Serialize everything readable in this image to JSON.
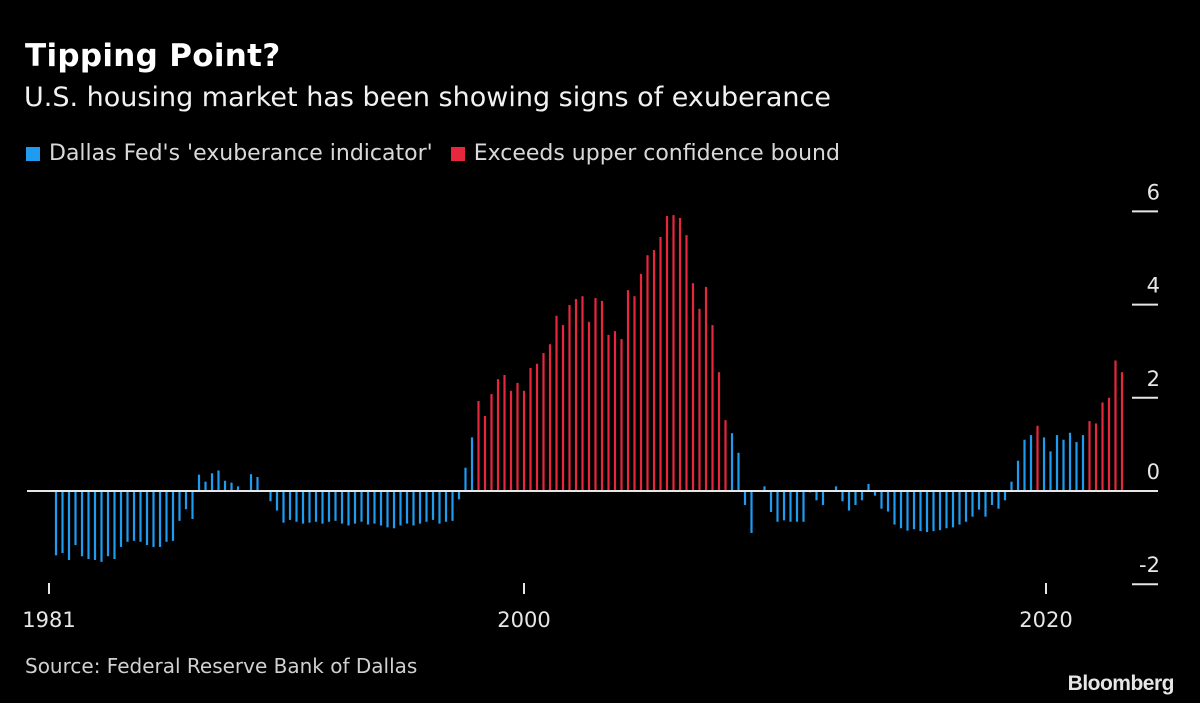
{
  "header": {
    "title": "Tipping Point?",
    "subtitle": "U.S. housing market has been showing signs of exuberance"
  },
  "legend": [
    {
      "label": "Dallas Fed's 'exuberance indicator'",
      "color": "#1f9bf0"
    },
    {
      "label": "Exceeds upper confidence bound",
      "color": "#e8273c"
    }
  ],
  "footer": {
    "source": "Source: Federal Reserve Bank of Dallas",
    "brand": "Bloomberg"
  },
  "chart_data": {
    "type": "bar",
    "title": "Tipping Point?",
    "subtitle": "U.S. housing market has been showing signs of exuberance",
    "xlabel": "",
    "ylabel": "",
    "frequency": "quarterly",
    "x_start": 1981,
    "x_ticks": [
      1981,
      2000,
      2020
    ],
    "y_ticks": [
      -2,
      0,
      2,
      4,
      6
    ],
    "ylim": [
      -2.2,
      6.2
    ],
    "y_axis_side": "right",
    "grid": false,
    "legend_position": "top-left",
    "series": [
      {
        "name": "Dallas Fed's 'exuberance indicator'",
        "color": "#1f9bf0"
      },
      {
        "name": "Exceeds upper confidence bound",
        "color": "#e8273c"
      }
    ],
    "values": [
      -1.38,
      -1.33,
      -1.48,
      -1.16,
      -1.4,
      -1.46,
      -1.48,
      -1.52,
      -1.4,
      -1.46,
      -1.2,
      -1.09,
      -1.07,
      -1.09,
      -1.16,
      -1.2,
      -1.2,
      -1.09,
      -1.07,
      -0.64,
      -0.39,
      -0.6,
      0.35,
      0.2,
      0.38,
      0.44,
      0.22,
      0.18,
      0.1,
      0.0,
      0.36,
      0.3,
      0.0,
      -0.22,
      -0.42,
      -0.68,
      -0.62,
      -0.66,
      -0.7,
      -0.68,
      -0.66,
      -0.7,
      -0.66,
      -0.64,
      -0.7,
      -0.74,
      -0.7,
      -0.66,
      -0.72,
      -0.7,
      -0.74,
      -0.78,
      -0.8,
      -0.74,
      -0.7,
      -0.74,
      -0.7,
      -0.66,
      -0.62,
      -0.7,
      -0.66,
      -0.64,
      -0.18,
      0.5,
      1.15,
      1.93,
      1.61,
      2.08,
      2.4,
      2.49,
      2.15,
      2.32,
      2.15,
      2.64,
      2.73,
      2.96,
      3.15,
      3.76,
      3.56,
      3.99,
      4.12,
      4.18,
      3.63,
      4.14,
      4.08,
      3.35,
      3.43,
      3.26,
      4.31,
      4.18,
      4.66,
      5.06,
      5.17,
      5.45,
      5.9,
      5.92,
      5.86,
      5.49,
      4.46,
      3.91,
      4.38,
      3.56,
      2.55,
      1.52,
      1.24,
      0.82,
      -0.3,
      -0.9,
      0.0,
      0.1,
      -0.45,
      -0.66,
      -0.63,
      -0.66,
      -0.66,
      -0.66,
      -0.03,
      -0.2,
      -0.3,
      0.0,
      0.1,
      -0.22,
      -0.42,
      -0.3,
      -0.2,
      0.15,
      -0.1,
      -0.38,
      -0.44,
      -0.72,
      -0.8,
      -0.85,
      -0.82,
      -0.86,
      -0.88,
      -0.86,
      -0.84,
      -0.8,
      -0.78,
      -0.72,
      -0.66,
      -0.55,
      -0.4,
      -0.55,
      -0.3,
      -0.38,
      -0.2,
      0.2,
      0.65,
      1.1,
      1.2,
      1.4,
      1.15,
      0.85,
      1.2,
      1.1,
      1.25,
      1.05,
      1.2,
      1.5,
      1.45,
      1.9,
      2.0,
      2.8,
      2.55
    ],
    "exceeds_upper_bound": [
      false,
      false,
      false,
      false,
      false,
      false,
      false,
      false,
      false,
      false,
      false,
      false,
      false,
      false,
      false,
      false,
      false,
      false,
      false,
      false,
      false,
      false,
      false,
      false,
      false,
      false,
      false,
      false,
      false,
      false,
      false,
      false,
      false,
      false,
      false,
      false,
      false,
      false,
      false,
      false,
      false,
      false,
      false,
      false,
      false,
      false,
      false,
      false,
      false,
      false,
      false,
      false,
      false,
      false,
      false,
      false,
      false,
      false,
      false,
      false,
      false,
      false,
      false,
      false,
      false,
      true,
      true,
      true,
      true,
      true,
      true,
      true,
      true,
      true,
      true,
      true,
      true,
      true,
      true,
      true,
      true,
      true,
      true,
      true,
      true,
      true,
      true,
      true,
      true,
      true,
      true,
      true,
      true,
      true,
      true,
      true,
      true,
      true,
      true,
      true,
      true,
      true,
      true,
      true,
      false,
      false,
      false,
      false,
      false,
      false,
      false,
      false,
      false,
      false,
      false,
      false,
      false,
      false,
      false,
      false,
      false,
      false,
      false,
      false,
      false,
      false,
      false,
      false,
      false,
      false,
      false,
      false,
      false,
      false,
      false,
      false,
      false,
      false,
      false,
      false,
      false,
      false,
      false,
      false,
      false,
      false,
      false,
      false,
      false,
      false,
      false,
      true,
      false,
      false,
      false,
      false,
      false,
      false,
      false,
      true,
      true,
      true,
      true,
      true,
      true
    ]
  }
}
